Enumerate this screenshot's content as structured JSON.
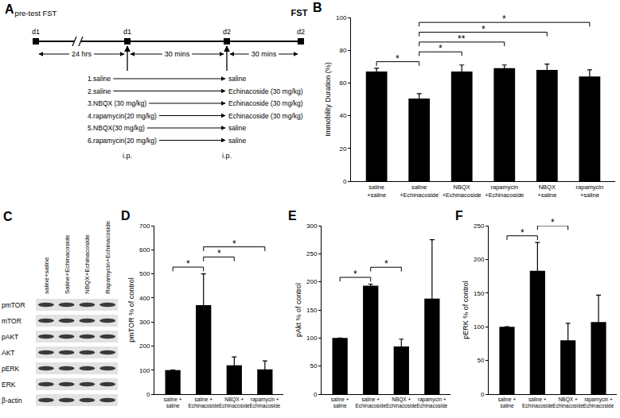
{
  "panel_a": {
    "label": "A",
    "start_label": "pre-test FST",
    "end_label": "FST",
    "days": [
      "d1",
      "d1",
      "d2",
      "d2"
    ],
    "intervals": [
      "24 hrs",
      "30 mins",
      "30 mins"
    ],
    "treatments": [
      [
        "1.saline",
        "saline"
      ],
      [
        "2.saline",
        "Echinacoside (30 mg/kg)"
      ],
      [
        "3.NBQX (30 mg/kg)",
        "Echinacoside (30 mg/kg)"
      ],
      [
        "4.rapamycin(20 mg/kg)",
        "Echinacoside (30 mg/kg)"
      ],
      [
        "5.NBQX(30 mg/kg)",
        "saline"
      ],
      [
        "6.rapamycin(20 mg/kg)",
        "saline"
      ]
    ],
    "route": [
      "i.p.",
      "i.p."
    ]
  },
  "panel_c": {
    "label": "C",
    "lanes": [
      "saline+saline",
      "Saline+Echinacoside",
      "NBQX+Echinacoside",
      "Rapamycin+Echinacoside"
    ],
    "rows": [
      "pmTOR",
      "mTOR",
      "pAKT",
      "AKT",
      "pERK",
      "ERK",
      "β-actin"
    ]
  },
  "chart_data": [
    {
      "title": "B",
      "type": "bar",
      "categories": [
        "saline\n+saline",
        "saline\n+Echinacoside",
        "NBQX\n+Echinacoside",
        "rapamycin\n+Echinacoside",
        "NBQX\n+saline",
        "rapamycin\n+saline"
      ],
      "values": [
        67,
        50.5,
        67,
        69,
        68,
        64
      ],
      "errors": [
        2,
        3,
        4,
        2,
        3.5,
        4
      ],
      "color": "#000000",
      "y_label": "Immobility Duration (%)",
      "ylim": [
        0,
        100
      ],
      "yticks": [
        0,
        20,
        40,
        60,
        80,
        100
      ],
      "grid": false,
      "annotations": [
        {
          "from": 0,
          "to": 1,
          "text": "*"
        },
        {
          "from": 1,
          "to": 2,
          "text": "*"
        },
        {
          "from": 1,
          "to": 3,
          "text": "**"
        },
        {
          "from": 1,
          "to": 4,
          "text": "*"
        },
        {
          "from": 1,
          "to": 5,
          "text": "*"
        }
      ]
    },
    {
      "title": "D",
      "type": "bar",
      "categories": [
        "saline +\nsaline",
        "saline +\nEchinacoside",
        "NBQX +\nEchinacoside",
        "rapamycin +\nEchinacoside"
      ],
      "values": [
        100,
        370,
        120,
        103
      ],
      "errors": [
        0,
        130,
        35,
        35
      ],
      "color": "#000000",
      "y_label": "pmTOR % of control",
      "ylim": [
        0,
        700
      ],
      "yticks": [
        0,
        100,
        200,
        300,
        400,
        500,
        600,
        700
      ],
      "grid": false,
      "annotations": [
        {
          "from": 0,
          "to": 1,
          "text": "*"
        },
        {
          "from": 1,
          "to": 2,
          "text": "*"
        },
        {
          "from": 1,
          "to": 3,
          "text": "*"
        }
      ]
    },
    {
      "title": "E",
      "type": "bar",
      "categories": [
        "saline +\nsaline",
        "saline +\nEchinacoside",
        "NBQX +\nEchinacoside",
        "rapamycin +\nEchinacoside"
      ],
      "values": [
        100,
        193,
        85,
        170
      ],
      "errors": [
        0,
        3,
        13,
        105
      ],
      "color": "#000000",
      "y_label": "pAkt % of control",
      "ylim": [
        0,
        300
      ],
      "yticks": [
        0,
        50,
        100,
        150,
        200,
        250,
        300
      ],
      "grid": false,
      "annotations": [
        {
          "from": 0,
          "to": 1,
          "text": "*"
        },
        {
          "from": 1,
          "to": 2,
          "text": "*"
        }
      ]
    },
    {
      "title": "F",
      "type": "bar",
      "categories": [
        "saline +\nsaline",
        "saline +\nEchinacoside",
        "NBQX +\nEchinacoside",
        "rapamycin +\nEchinacoside"
      ],
      "values": [
        100,
        183,
        80,
        107
      ],
      "errors": [
        0,
        42,
        25,
        40
      ],
      "color": "#000000",
      "y_label": "pERK % of control",
      "ylim": [
        0,
        250
      ],
      "yticks": [
        0,
        50,
        100,
        150,
        200,
        250
      ],
      "grid": false,
      "annotations": [
        {
          "from": 0,
          "to": 1,
          "text": "*"
        },
        {
          "from": 1,
          "to": 2,
          "text": "*"
        }
      ]
    }
  ]
}
